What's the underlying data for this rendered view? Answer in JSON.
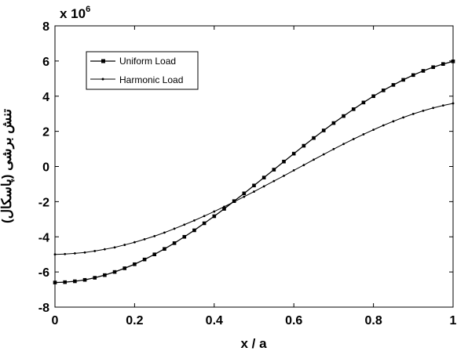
{
  "chart_data": {
    "type": "line",
    "title": "",
    "xlabel": "x / a",
    "ylabel": "تنش برشی (پاسکال)",
    "y_multiplier_label": {
      "base": "x 10",
      "exponent": "6"
    },
    "xlim": [
      0,
      1
    ],
    "ylim": [
      -8,
      8
    ],
    "x_ticks": [
      0,
      0.2,
      0.4,
      0.6,
      0.8,
      1
    ],
    "x_tick_labels": [
      "0",
      "0.2",
      "0.4",
      "0.6",
      "0.8",
      "1"
    ],
    "y_ticks": [
      -8,
      -6,
      -4,
      -2,
      0,
      2,
      4,
      6,
      8
    ],
    "y_tick_labels": [
      "-8",
      "-6",
      "-4",
      "-2",
      "0",
      "2",
      "4",
      "6",
      "8"
    ],
    "grid": false,
    "legend_position": "top-left",
    "x": [
      0,
      0.025,
      0.05,
      0.075,
      0.1,
      0.125,
      0.15,
      0.175,
      0.2,
      0.225,
      0.25,
      0.275,
      0.3,
      0.325,
      0.35,
      0.375,
      0.4,
      0.425,
      0.45,
      0.475,
      0.5,
      0.525,
      0.55,
      0.575,
      0.6,
      0.625,
      0.65,
      0.675,
      0.7,
      0.725,
      0.75,
      0.775,
      0.8,
      0.825,
      0.85,
      0.875,
      0.9,
      0.925,
      0.95,
      0.975,
      1
    ],
    "series": [
      {
        "name": "Uniform Load",
        "marker": "square",
        "values": [
          -6.6,
          -6.58,
          -6.53,
          -6.45,
          -6.33,
          -6.18,
          -6.0,
          -5.79,
          -5.56,
          -5.29,
          -5.0,
          -4.69,
          -4.36,
          -4.0,
          -3.63,
          -3.23,
          -2.83,
          -2.41,
          -1.97,
          -1.53,
          -1.08,
          -0.63,
          -0.18,
          0.28,
          0.73,
          1.18,
          1.62,
          2.05,
          2.47,
          2.87,
          3.26,
          3.64,
          4.0,
          4.33,
          4.64,
          4.93,
          5.2,
          5.44,
          5.65,
          5.83,
          5.98
        ]
      },
      {
        "name": "Harmonic Load",
        "marker": "dot",
        "values": [
          -5.0,
          -4.98,
          -4.94,
          -4.89,
          -4.81,
          -4.71,
          -4.6,
          -4.46,
          -4.31,
          -4.14,
          -3.96,
          -3.76,
          -3.54,
          -3.31,
          -3.07,
          -2.82,
          -2.56,
          -2.29,
          -2.01,
          -1.72,
          -1.43,
          -1.13,
          -0.83,
          -0.53,
          -0.22,
          0.08,
          0.39,
          0.69,
          0.99,
          1.28,
          1.56,
          1.83,
          2.09,
          2.34,
          2.57,
          2.79,
          2.99,
          3.17,
          3.33,
          3.47,
          3.59
        ]
      }
    ]
  }
}
